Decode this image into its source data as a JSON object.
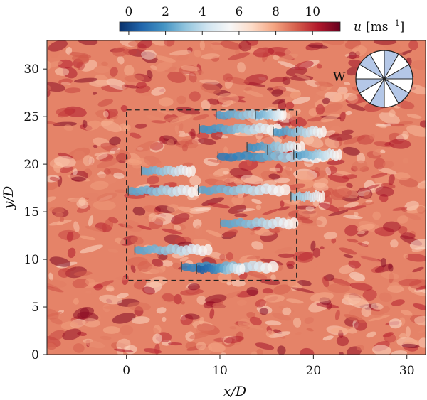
{
  "chart_data": {
    "type": "heatmap",
    "title": "",
    "xlabel": "x/D",
    "ylabel": "y/D",
    "xlim": [
      -8.5,
      32
    ],
    "ylim": [
      0,
      33
    ],
    "xticks": [
      0,
      10,
      20,
      30
    ],
    "yticks": [
      0,
      5,
      10,
      15,
      20,
      25,
      30
    ],
    "colorbar": {
      "label": "u [ms⁻¹]",
      "label_text": "u",
      "label_unit": "[ms",
      "label_exp": "−1",
      "label_close": "]",
      "range": [
        -0.5,
        11.5
      ],
      "ticks": [
        0,
        2,
        4,
        6,
        8,
        10
      ],
      "colormap": [
        "#08306b",
        "#2166ac",
        "#4393c3",
        "#92c5de",
        "#d1e5f0",
        "#f7f7f7",
        "#fddbc7",
        "#f4a582",
        "#d6604d",
        "#b2182b",
        "#67001f"
      ],
      "position": "top"
    },
    "background_field_value": 8.5,
    "farm_boundary": {
      "x": [
        0,
        18.2
      ],
      "y": [
        7.8,
        25.7
      ],
      "style": "dashed"
    },
    "turbines": [
      {
        "x": 9.6,
        "y": 25.2
      },
      {
        "x": 13.8,
        "y": 25.2
      },
      {
        "x": 7.8,
        "y": 23.7
      },
      {
        "x": 15.7,
        "y": 23.4
      },
      {
        "x": 12.9,
        "y": 21.8
      },
      {
        "x": 15.1,
        "y": 21.5
      },
      {
        "x": 17.9,
        "y": 21.0
      },
      {
        "x": 9.8,
        "y": 20.8
      },
      {
        "x": 1.6,
        "y": 19.3
      },
      {
        "x": 0.2,
        "y": 17.2
      },
      {
        "x": 7.7,
        "y": 17.3
      },
      {
        "x": 17.6,
        "y": 16.6
      },
      {
        "x": 10.1,
        "y": 13.8
      },
      {
        "x": 0.9,
        "y": 11.0
      },
      {
        "x": 5.9,
        "y": 9.2
      },
      {
        "x": 7.5,
        "y": 9.0
      }
    ],
    "wakes": [
      {
        "x0": 9.6,
        "y": 25.2,
        "length": 7.0,
        "min_u": 2.2
      },
      {
        "x0": 13.8,
        "y": 25.2,
        "length": 3.2,
        "min_u": 2.5
      },
      {
        "x0": 7.8,
        "y": 23.7,
        "length": 8.5,
        "min_u": 1.8
      },
      {
        "x0": 15.7,
        "y": 23.4,
        "length": 5.5,
        "min_u": 2.0
      },
      {
        "x0": 9.8,
        "y": 20.8,
        "length": 11.5,
        "min_u": 1.2
      },
      {
        "x0": 12.9,
        "y": 21.8,
        "length": 6.0,
        "min_u": 1.8
      },
      {
        "x0": 17.9,
        "y": 21.0,
        "length": 5.0,
        "min_u": 2.2
      },
      {
        "x0": 1.6,
        "y": 19.3,
        "length": 5.6,
        "min_u": 2.4
      },
      {
        "x0": 0.2,
        "y": 17.2,
        "length": 7.5,
        "min_u": 2.3
      },
      {
        "x0": 7.7,
        "y": 17.3,
        "length": 9.5,
        "min_u": 2.3
      },
      {
        "x0": 17.6,
        "y": 16.6,
        "length": 3.5,
        "min_u": 3.0
      },
      {
        "x0": 10.1,
        "y": 13.8,
        "length": 8.0,
        "min_u": 2.3
      },
      {
        "x0": 0.9,
        "y": 11.0,
        "length": 8.0,
        "min_u": 2.3
      },
      {
        "x0": 5.9,
        "y": 9.2,
        "length": 10.0,
        "min_u": 1.4
      },
      {
        "x0": 7.5,
        "y": 9.0,
        "length": 5.0,
        "min_u": 0.5
      }
    ],
    "wind_rose": {
      "label": "W",
      "sectors": 12,
      "highlighted_sectors": [
        0,
        2,
        4,
        6,
        8,
        10
      ],
      "highlight_color": "#b4c7e7",
      "location": "top-right"
    }
  }
}
